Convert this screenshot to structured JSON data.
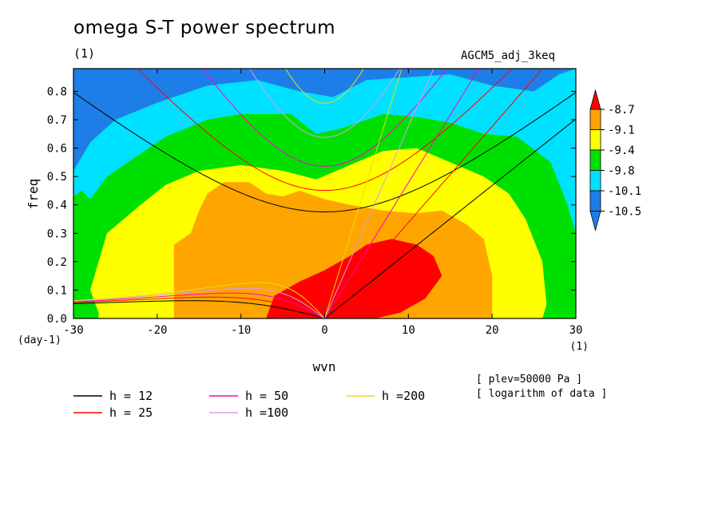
{
  "header": {
    "title": "omega S-T power spectrum",
    "subtitle_left": "(1)",
    "subtitle_right": "AGCM5_adj_3keq"
  },
  "notes": {
    "line1": "[ plev=50000 Pa ]",
    "line2": "[ logarithm of data ]"
  },
  "chart_data": {
    "type": "heatmap",
    "title": "omega S-T power spectrum",
    "xlabel": "wvn",
    "ylabel": "freq",
    "x_unit": "(1)",
    "y_unit": "(day-1)",
    "xlim": [
      -30,
      30
    ],
    "ylim": [
      0,
      0.88
    ],
    "x_ticks": [
      -30,
      -20,
      -10,
      0,
      10,
      20,
      30
    ],
    "x_tick_labels": [
      "-30",
      "-20",
      "-10",
      "0",
      "10",
      "20",
      "30"
    ],
    "y_ticks": [
      0,
      0.1,
      0.2,
      0.3,
      0.4,
      0.5,
      0.6,
      0.7,
      0.8
    ],
    "y_tick_labels": [
      "0.0",
      "0.1",
      "0.2",
      "0.3",
      "0.4",
      "0.5",
      "0.6",
      "0.7",
      "0.8"
    ],
    "colorbar": {
      "levels": [
        "-8.7",
        "-9.1",
        "-9.4",
        "-9.8",
        "-10.1",
        "-10.5"
      ],
      "colors": [
        "#1e7ee8",
        "#00e0ff",
        "#00e000",
        "#ffff00",
        "#ffa500",
        "#ff0000"
      ]
    },
    "contour_regions": [
      {
        "color": "#1e7ee8",
        "boundary": [
          [
            -30,
            0.88
          ],
          [
            -30,
            0.88
          ],
          [
            30,
            0.88
          ],
          [
            30,
            0.88
          ]
        ]
      },
      {
        "color": "#00e0ff",
        "boundary": [
          [
            -30,
            0.52
          ],
          [
            -28,
            0.62
          ],
          [
            -25,
            0.7
          ],
          [
            -20,
            0.76
          ],
          [
            -14,
            0.82
          ],
          [
            -8,
            0.84
          ],
          [
            -3,
            0.8
          ],
          [
            1,
            0.78
          ],
          [
            5,
            0.84
          ],
          [
            10,
            0.85
          ],
          [
            15,
            0.86
          ],
          [
            20,
            0.82
          ],
          [
            25,
            0.8
          ],
          [
            28,
            0.86
          ],
          [
            30,
            0.88
          ]
        ]
      },
      {
        "color": "#00e000",
        "boundary": [
          [
            -30,
            0.43
          ],
          [
            -29,
            0.45
          ],
          [
            -28,
            0.42
          ],
          [
            -26,
            0.5
          ],
          [
            -23,
            0.56
          ],
          [
            -19,
            0.64
          ],
          [
            -14,
            0.7
          ],
          [
            -10,
            0.72
          ],
          [
            -4,
            0.72
          ],
          [
            -1,
            0.65
          ],
          [
            2,
            0.67
          ],
          [
            7,
            0.72
          ],
          [
            11,
            0.71
          ],
          [
            15,
            0.69
          ],
          [
            19,
            0.65
          ],
          [
            23,
            0.64
          ],
          [
            27,
            0.55
          ],
          [
            29,
            0.4
          ],
          [
            30,
            0.3
          ]
        ]
      },
      {
        "color": "#ffff00",
        "boundary": [
          [
            -27,
            0.02
          ],
          [
            -28,
            0.1
          ],
          [
            -27,
            0.2
          ],
          [
            -26,
            0.3
          ],
          [
            -24,
            0.35
          ],
          [
            -22,
            0.4
          ],
          [
            -19,
            0.47
          ],
          [
            -15,
            0.52
          ],
          [
            -10,
            0.54
          ],
          [
            -5,
            0.52
          ],
          [
            -1,
            0.49
          ],
          [
            3,
            0.54
          ],
          [
            7,
            0.59
          ],
          [
            11,
            0.6
          ],
          [
            15,
            0.55
          ],
          [
            19,
            0.5
          ],
          [
            22,
            0.44
          ],
          [
            24,
            0.35
          ],
          [
            26,
            0.2
          ],
          [
            26.5,
            0.05
          ],
          [
            26,
            0
          ]
        ]
      },
      {
        "color": "#ffa500",
        "boundary": [
          [
            -18,
            0
          ],
          [
            -18,
            0.05
          ],
          [
            -18,
            0.12
          ],
          [
            -18,
            0.2
          ],
          [
            -18,
            0.26
          ],
          [
            -16,
            0.3
          ],
          [
            -15,
            0.38
          ],
          [
            -14,
            0.44
          ],
          [
            -12,
            0.48
          ],
          [
            -9,
            0.48
          ],
          [
            -7,
            0.44
          ],
          [
            -5,
            0.43
          ],
          [
            -3,
            0.45
          ],
          [
            0,
            0.42
          ],
          [
            3,
            0.4
          ],
          [
            7,
            0.38
          ],
          [
            11,
            0.37
          ],
          [
            14,
            0.38
          ],
          [
            17,
            0.33
          ],
          [
            19,
            0.28
          ],
          [
            20,
            0.15
          ],
          [
            20,
            0
          ]
        ]
      },
      {
        "color": "#ff0000",
        "boundary": [
          [
            -7,
            0
          ],
          [
            -6,
            0.08
          ],
          [
            -3,
            0.13
          ],
          [
            0,
            0.17
          ],
          [
            3,
            0.22
          ],
          [
            5,
            0.26
          ],
          [
            8,
            0.28
          ],
          [
            11,
            0.26
          ],
          [
            13,
            0.22
          ],
          [
            14,
            0.15
          ],
          [
            12,
            0.07
          ],
          [
            9,
            0.02
          ],
          [
            6,
            0
          ]
        ]
      }
    ],
    "series": [
      {
        "name": "h = 12",
        "color": "#000000"
      },
      {
        "name": "h = 25",
        "color": "#ff0000"
      },
      {
        "name": "h = 50",
        "color": "#ff00c0"
      },
      {
        "name": "h =100",
        "color": "#d89cf0"
      },
      {
        "name": "h =200",
        "color": "#e8e000"
      }
    ],
    "legend_position": "bottom-left"
  }
}
